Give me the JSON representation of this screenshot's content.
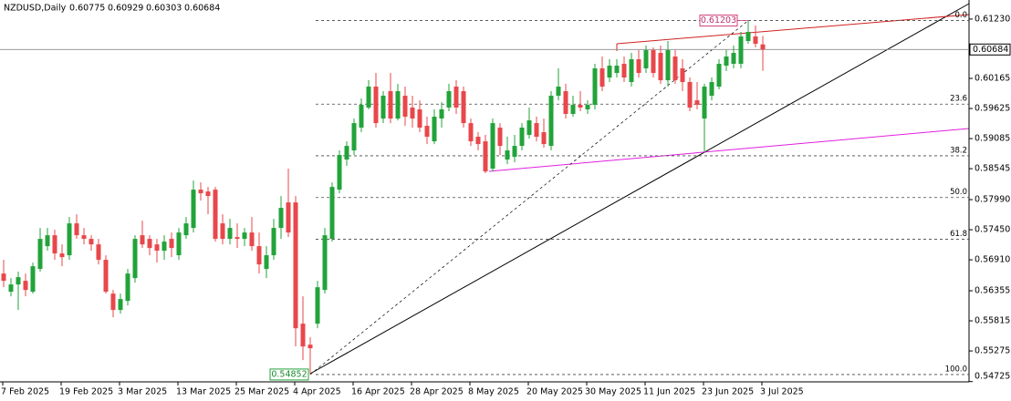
{
  "chart_data": {
    "type": "candlestick",
    "title": "NZDUSD,Daily",
    "categories": [
      "7 Feb 2025",
      null,
      null,
      null,
      null,
      null,
      null,
      null,
      "19 Feb 2025",
      null,
      null,
      null,
      null,
      null,
      null,
      null,
      "3 Mar 2025",
      null,
      null,
      null,
      null,
      null,
      null,
      null,
      "13 Mar 2025",
      null,
      null,
      null,
      null,
      null,
      null,
      null,
      "25 Mar 2025",
      null,
      null,
      null,
      null,
      null,
      null,
      null,
      "4 Apr 2025",
      null,
      null,
      null,
      null,
      null,
      null,
      null,
      "16 Apr 2025",
      null,
      null,
      null,
      null,
      null,
      null,
      null,
      "28 Apr 2025",
      null,
      null,
      null,
      null,
      null,
      null,
      null,
      "8 May 2025",
      null,
      null,
      null,
      null,
      null,
      null,
      null,
      "20 May 2025",
      null,
      null,
      null,
      null,
      null,
      null,
      null,
      "30 May 2025",
      null,
      null,
      null,
      null,
      null,
      null,
      null,
      "11 Jun 2025",
      null,
      null,
      null,
      null,
      null,
      null,
      null,
      "23 Jun 2025",
      null,
      null,
      null,
      null,
      null,
      null,
      null,
      "3 Jul 2025"
    ],
    "open": [
      0.56664,
      0.56337,
      0.56468,
      0.56533,
      0.56337,
      0.56746,
      0.57155,
      0.57351,
      0.57024,
      0.56992,
      0.57564,
      0.57351,
      0.57286,
      0.57187,
      0.5691,
      0.56304,
      0.5601,
      0.56173,
      0.56582,
      0.57351,
      0.57286,
      0.57187,
      0.57073,
      0.57286,
      0.56992,
      0.57351,
      0.57482,
      0.58169,
      0.58136,
      0.58169,
      0.57564,
      0.57286,
      0.57318,
      0.57286,
      0.574,
      0.57155,
      0.56746,
      0.56992,
      0.57482,
      0.5794,
      0.5794,
      0.55764,
      0.55388,
      0.55764,
      0.56369,
      0.57286,
      0.58169,
      0.58709,
      0.58873,
      0.59282,
      0.59642,
      0.60018,
      0.59445,
      0.59936,
      0.59445,
      0.59854,
      0.59642,
      0.59609,
      0.59314,
      0.59036,
      0.59445,
      0.59642,
      0.60018,
      0.59936,
      0.59363,
      0.59118,
      0.59036,
      0.58546,
      0.59282,
      0.58709,
      0.58758,
      0.58954,
      0.59151,
      0.59363,
      0.592,
      0.58954,
      0.59854,
      0.59936,
      0.59527,
      0.59691,
      0.59609,
      0.59691,
      0.60345,
      0.60181,
      0.60263,
      0.60427,
      0.601,
      0.60509,
      0.60345,
      0.60672,
      0.60623,
      0.60132,
      0.60558,
      0.60345,
      0.601,
      0.59772,
      0.59445,
      0.59854,
      0.60018,
      0.60394,
      0.60427,
      0.60427,
      0.60836,
      0.60918,
      0.60775
    ],
    "high": [
      0.5691,
      0.56582,
      0.56697,
      0.56664,
      0.56861,
      0.57482,
      0.57482,
      0.57449,
      0.57187,
      0.57678,
      0.57727,
      0.57482,
      0.57351,
      0.57286,
      0.56992,
      0.56369,
      0.56304,
      0.56746,
      0.57351,
      0.57613,
      0.57351,
      0.57286,
      0.57351,
      0.574,
      0.57482,
      0.57678,
      0.58333,
      0.583,
      0.58218,
      0.58218,
      0.57727,
      0.57646,
      0.57564,
      0.57482,
      0.57678,
      0.574,
      0.57155,
      0.57646,
      0.58055,
      0.58546,
      0.58055,
      0.56255,
      0.55519,
      0.56533,
      0.57482,
      0.583,
      0.58873,
      0.59036,
      0.59445,
      0.59805,
      0.60132,
      0.60263,
      0.59936,
      0.60263,
      0.60067,
      0.60018,
      0.59854,
      0.59772,
      0.59478,
      0.59609,
      0.59739,
      0.60067,
      0.60132,
      0.60018,
      0.59445,
      0.592,
      0.59151,
      0.59445,
      0.59363,
      0.59118,
      0.59151,
      0.59363,
      0.59642,
      0.59478,
      0.59445,
      0.59936,
      0.60345,
      0.60067,
      0.59854,
      0.59936,
      0.59772,
      0.60427,
      0.60558,
      0.60509,
      0.60509,
      0.60558,
      0.60623,
      0.60672,
      0.60754,
      0.60721,
      0.60754,
      0.60836,
      0.60672,
      0.60509,
      0.60181,
      0.601,
      0.60067,
      0.60181,
      0.60509,
      0.60672,
      0.60754,
      0.60999,
      0.61203,
      0.61114,
      0.60929
    ],
    "low": [
      0.56418,
      0.56255,
      0.5601,
      0.56255,
      0.56304,
      0.56697,
      0.57073,
      0.5691,
      0.56795,
      0.5691,
      0.57286,
      0.57187,
      0.57073,
      0.56828,
      0.56304,
      0.55879,
      0.55944,
      0.56091,
      0.565,
      0.57122,
      0.56992,
      0.56861,
      0.5691,
      0.56959,
      0.5691,
      0.57286,
      0.574,
      0.57973,
      0.57727,
      0.57237,
      0.57187,
      0.57187,
      0.57122,
      0.57155,
      0.57073,
      0.56664,
      0.56582,
      0.5691,
      0.57286,
      0.57318,
      0.55355,
      0.5511,
      0.54852,
      0.55682,
      0.56304,
      0.57237,
      0.58104,
      0.58595,
      0.58791,
      0.592,
      0.59609,
      0.59282,
      0.59363,
      0.59363,
      0.59412,
      0.59314,
      0.59282,
      0.592,
      0.58987,
      0.58987,
      0.59282,
      0.59576,
      0.59527,
      0.59282,
      0.58954,
      0.58873,
      0.58464,
      0.58496,
      0.58791,
      0.58627,
      0.5866,
      0.58873,
      0.59085,
      0.59036,
      0.58922,
      0.58873,
      0.59772,
      0.59445,
      0.59478,
      0.59576,
      0.59527,
      0.59609,
      0.59936,
      0.601,
      0.60181,
      0.601,
      0.60018,
      0.60181,
      0.60263,
      0.60181,
      0.60067,
      0.60018,
      0.60067,
      0.59936,
      0.59576,
      0.59609,
      0.58824,
      0.59772,
      0.59969,
      0.60296,
      0.60345,
      0.60345,
      0.60787,
      0.60721,
      0.60303
    ],
    "close": [
      0.56533,
      0.56468,
      0.56599,
      0.56369,
      0.56795,
      0.57286,
      0.57351,
      0.57024,
      0.56959,
      0.57564,
      0.57351,
      0.57286,
      0.57187,
      0.5691,
      0.56337,
      0.5601,
      0.56206,
      0.56664,
      0.57286,
      0.57187,
      0.57122,
      0.57073,
      0.57237,
      0.57122,
      0.574,
      0.57564,
      0.58169,
      0.58104,
      0.58055,
      0.57286,
      0.57286,
      0.57482,
      0.57286,
      0.574,
      0.57155,
      0.56828,
      0.56992,
      0.57482,
      0.57842,
      0.574,
      0.55682,
      0.55355,
      0.55323,
      0.56418,
      0.57351,
      0.58218,
      0.58791,
      0.58954,
      0.59363,
      0.59691,
      0.60018,
      0.59363,
      0.59854,
      0.59445,
      0.59936,
      0.59478,
      0.59445,
      0.59282,
      0.59118,
      0.59478,
      0.59609,
      0.59936,
      0.59642,
      0.59363,
      0.59036,
      0.58987,
      0.58496,
      0.59363,
      0.58954,
      0.58873,
      0.58954,
      0.59282,
      0.59412,
      0.59118,
      0.58987,
      0.59854,
      0.60018,
      0.59527,
      0.59691,
      0.59642,
      0.59691,
      0.60345,
      0.60018,
      0.60394,
      0.60394,
      0.60181,
      0.60509,
      0.60263,
      0.60672,
      0.60263,
      0.60132,
      0.60672,
      0.60132,
      0.601,
      0.59642,
      0.59691,
      0.60018,
      0.601,
      0.60427,
      0.60558,
      0.60623,
      0.60918,
      0.60999,
      0.60787,
      0.60684
    ],
    "up_color": "#22a33a",
    "down_color": "#e8474b",
    "ylim": [
      0.5472,
      0.61572
    ],
    "yticks": [
      {
        "value": 0.6123,
        "label": "0.61230"
      },
      0.60165,
      0.59625,
      0.59085,
      0.58545,
      {
        "value": 0.5799,
        "label": "0.57990"
      },
      {
        "value": 0.5745,
        "label": "0.57450"
      },
      {
        "value": 0.5691,
        "label": "0.56910"
      },
      0.56355,
      0.55815,
      0.55275,
      0.54725
    ],
    "fib": {
      "high": 0.61203,
      "low": 0.54852,
      "levels": [
        {
          "value": 0,
          "label": "0.0"
        },
        23.6,
        38.2,
        {
          "value": 50,
          "label": "50.0"
        },
        61.8,
        {
          "value": 100,
          "label": "100.0"
        }
      ]
    }
  }
}
